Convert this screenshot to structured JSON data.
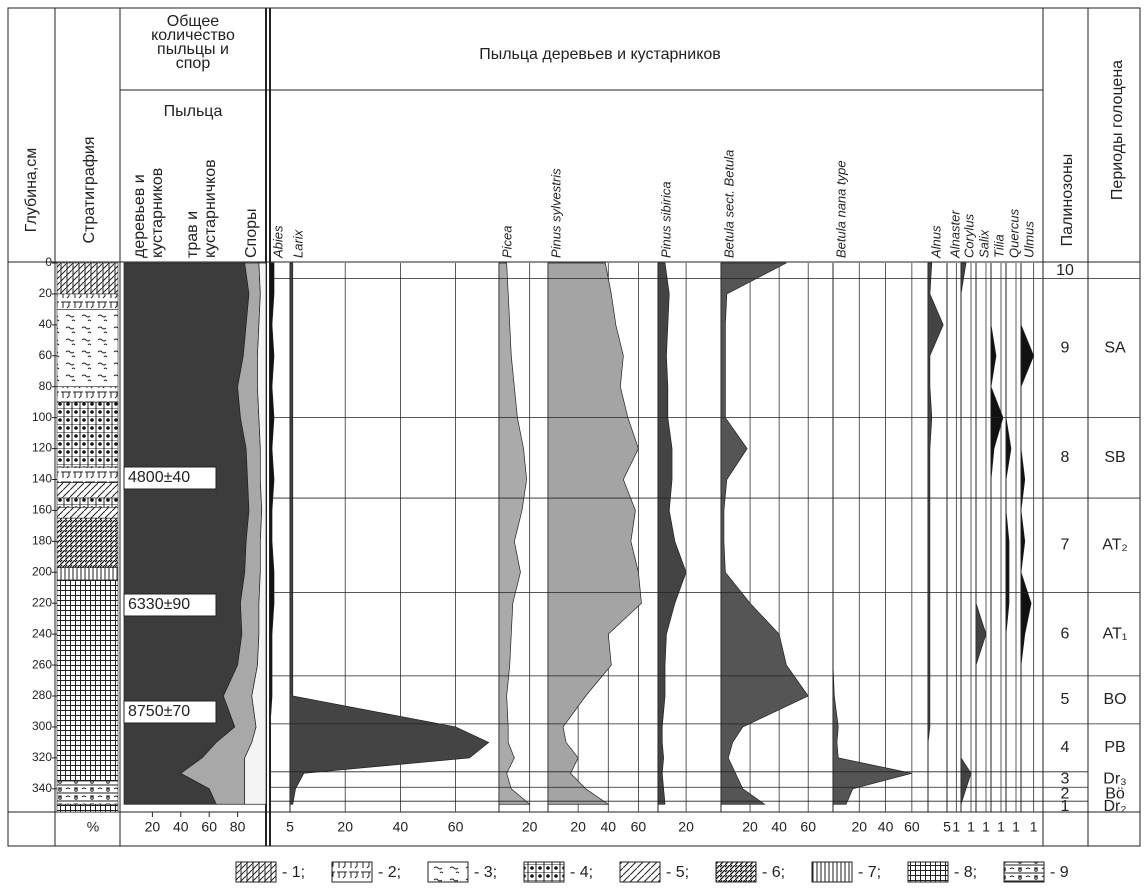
{
  "chart_data": {
    "type": "area",
    "depth_label": "Глубина,см",
    "strat_label": "Стратиграфия",
    "total_title": [
      "Общее",
      "количество",
      "пыльцы и",
      "спор"
    ],
    "pollen_label": "Пыльца",
    "total_groups": [
      {
        "name": [
          "деревьев и",
          "кустарников"
        ],
        "color": "#3c3c3c",
        "values": [
          85,
          88,
          86,
          84,
          80,
          82,
          86,
          87,
          88,
          86,
          85,
          82,
          83,
          80,
          70,
          78,
          65,
          55,
          40,
          60,
          65
        ]
      },
      {
        "name": [
          "трав и",
          "кустарничков"
        ],
        "color": "#a8a8a8",
        "values": [
          10,
          8,
          9,
          10,
          14,
          13,
          10,
          9,
          9,
          10,
          11,
          13,
          12,
          14,
          20,
          15,
          25,
          30,
          45,
          25,
          20
        ]
      },
      {
        "name": [
          "Споры"
        ],
        "color": "#f4f4f4",
        "values": [
          5,
          4,
          5,
          6,
          6,
          5,
          4,
          4,
          3,
          4,
          4,
          5,
          5,
          6,
          10,
          7,
          10,
          15,
          15,
          15,
          15
        ]
      }
    ],
    "total_xlim": [
      0,
      100
    ],
    "total_xticks": [
      20,
      40,
      60,
      80
    ],
    "percent_label": "%",
    "trees_title": "Пыльца деревьев и кустарников",
    "depths": [
      0,
      20,
      40,
      60,
      80,
      100,
      120,
      140,
      160,
      180,
      200,
      220,
      240,
      260,
      280,
      300,
      310,
      320,
      330,
      340,
      350
    ],
    "ylim": [
      0,
      355
    ],
    "yticks": [
      0,
      20,
      40,
      60,
      80,
      100,
      120,
      140,
      160,
      180,
      200,
      220,
      240,
      260,
      280,
      300,
      320,
      340
    ],
    "taxa": [
      {
        "name": "Abies",
        "color": "#111",
        "xlim": [
          0,
          5
        ],
        "xticks": [
          5
        ],
        "values": [
          1,
          1,
          0.5,
          1,
          0.5,
          1,
          0.5,
          1,
          0.5,
          0.5,
          1,
          1,
          0.5,
          0.5,
          0.5,
          0,
          0,
          0,
          0,
          0,
          0
        ]
      },
      {
        "name": "Larix",
        "color": "#444",
        "xlim": [
          0,
          75
        ],
        "xticks": [
          20,
          40,
          60
        ],
        "values": [
          1,
          1,
          1,
          1,
          1,
          1,
          1,
          1,
          1,
          1,
          1,
          1,
          1,
          1,
          1,
          60,
          72,
          65,
          5,
          2,
          1
        ]
      },
      {
        "name": "Picea",
        "color": "#aaa",
        "xlim": [
          0,
          30
        ],
        "xticks": [
          20
        ],
        "values": [
          5,
          6,
          7,
          8,
          10,
          12,
          16,
          18,
          15,
          10,
          14,
          9,
          8,
          7,
          5,
          6,
          6,
          10,
          5,
          8,
          20
        ]
      },
      {
        "name": "Pinus sylvestris",
        "color": "#a4a4a4",
        "xlim": [
          0,
          71
        ],
        "xticks": [
          20,
          40,
          60
        ],
        "values": [
          38,
          42,
          45,
          50,
          48,
          53,
          60,
          50,
          58,
          55,
          60,
          62,
          40,
          42,
          25,
          10,
          12,
          20,
          15,
          25,
          40
        ]
      },
      {
        "name": "Pinus sibirica",
        "color": "#444",
        "xlim": [
          0,
          42
        ],
        "xticks": [
          20
        ],
        "values": [
          5,
          8,
          7,
          6,
          7,
          7,
          10,
          10,
          8,
          12,
          20,
          12,
          6,
          5,
          5,
          3,
          3,
          4,
          3,
          4,
          5
        ]
      },
      {
        "name": "Betula sect. Betula",
        "color": "#555",
        "xlim": [
          0,
          75
        ],
        "xticks": [
          20,
          40,
          60
        ],
        "values": [
          45,
          4,
          3,
          3,
          3,
          3,
          18,
          4,
          2,
          2,
          3,
          20,
          40,
          45,
          60,
          15,
          8,
          5,
          10,
          15,
          30
        ]
      },
      {
        "name": "Betula nana type",
        "color": "#555",
        "xlim": [
          0,
          70
        ],
        "xticks": [
          20,
          40,
          60
        ],
        "values": [
          0,
          0,
          0,
          0,
          0,
          0,
          0,
          0,
          0,
          0,
          0,
          0,
          0,
          0,
          1,
          4,
          3,
          4,
          60,
          15,
          10
        ]
      },
      {
        "name": "Alnus",
        "color": "#444",
        "xlim": [
          0,
          5
        ],
        "xticks": [
          5
        ],
        "values": [
          1,
          0.5,
          4,
          0.5,
          0.5,
          1,
          0.5,
          0.5,
          0.5,
          0.5,
          0.5,
          0.5,
          0.5,
          0.5,
          0.5,
          0.5,
          0,
          0,
          0,
          0,
          0
        ]
      },
      {
        "name": "Alnaster",
        "color": "#444",
        "xlim": [
          0,
          1.5
        ],
        "xticks": [
          1
        ],
        "values": [
          0,
          0,
          0,
          0,
          0,
          0,
          0,
          0,
          0,
          0,
          0,
          0,
          0,
          0,
          0,
          0,
          0,
          0,
          0,
          0,
          0
        ]
      },
      {
        "name": "Corylus",
        "color": "#444",
        "xlim": [
          0,
          1.5
        ],
        "xticks": [
          1
        ],
        "values": [
          0.5,
          0,
          0,
          0,
          0,
          0,
          0,
          0,
          0,
          0,
          0,
          0,
          0,
          0,
          0,
          0,
          0,
          0,
          1,
          0.5,
          0
        ]
      },
      {
        "name": "Salix",
        "color": "#444",
        "xlim": [
          0,
          1.5
        ],
        "xticks": [
          1
        ],
        "values": [
          0,
          0,
          0,
          0,
          0,
          0,
          0,
          0,
          0,
          0,
          0,
          0,
          1,
          0,
          0,
          0,
          0,
          0,
          0,
          0,
          0
        ]
      },
      {
        "name": "Tilia",
        "color": "#111",
        "xlim": [
          0,
          1.5
        ],
        "xticks": [
          1
        ],
        "values": [
          0,
          0,
          0,
          0.5,
          0,
          1.2,
          0.3,
          0,
          0,
          0,
          0,
          0,
          0,
          0,
          0,
          0,
          0,
          0,
          0,
          0,
          0
        ]
      },
      {
        "name": "Quercus",
        "color": "#111",
        "xlim": [
          0,
          1.5
        ],
        "xticks": [
          1
        ],
        "values": [
          0,
          0,
          0,
          0,
          0,
          0,
          0.5,
          0,
          0,
          0.3,
          0.3,
          0.3,
          0,
          0,
          0,
          0,
          0,
          0,
          0,
          0,
          0
        ]
      },
      {
        "name": "Ulmus",
        "color": "#111",
        "xlim": [
          0,
          1.5
        ],
        "xticks": [
          1
        ],
        "values": [
          0,
          0,
          0,
          1,
          0,
          0,
          0,
          0.3,
          0,
          0.3,
          0,
          0.8,
          0.3,
          0,
          0,
          0,
          0,
          0,
          0,
          0,
          0
        ]
      }
    ],
    "dates": [
      "4800±40",
      "6330±90",
      "8750±70"
    ],
    "zones_label": "Палинозоны",
    "periods_label": "Периоды голоцена",
    "zones": [
      {
        "zone": "10",
        "top": 0,
        "bottom": 10
      },
      {
        "zone": "9",
        "period": "SA",
        "top": 10,
        "bottom": 100
      },
      {
        "zone": "8",
        "period": "SB",
        "top": 100,
        "bottom": 152
      },
      {
        "zone": "7",
        "period": "AT₂",
        "top": 152,
        "bottom": 213
      },
      {
        "zone": "6",
        "period": "AT₁",
        "top": 213,
        "bottom": 267
      },
      {
        "zone": "5",
        "period": "BO",
        "top": 267,
        "bottom": 298
      },
      {
        "zone": "4",
        "period": "PB",
        "top": 298,
        "bottom": 329
      },
      {
        "zone": "3",
        "period": "Dr₃",
        "top": 329,
        "bottom": 339
      },
      {
        "zone": "2",
        "period": "Bö",
        "top": 339,
        "bottom": 348
      },
      {
        "zone": "1",
        "period": "Dr₂",
        "top": 348,
        "bottom": 355
      }
    ],
    "layers": [
      {
        "top": 0,
        "bottom": 20,
        "type": 1
      },
      {
        "top": 20,
        "bottom": 30,
        "type": 2
      },
      {
        "top": 30,
        "bottom": 80,
        "type": 3
      },
      {
        "top": 80,
        "bottom": 90,
        "type": 2
      },
      {
        "top": 90,
        "bottom": 132,
        "type": 4
      },
      {
        "top": 132,
        "bottom": 142,
        "type": 2
      },
      {
        "top": 142,
        "bottom": 152,
        "type": 5
      },
      {
        "top": 152,
        "bottom": 158,
        "type": 4
      },
      {
        "top": 158,
        "bottom": 165,
        "type": 5
      },
      {
        "top": 165,
        "bottom": 197,
        "type": 6
      },
      {
        "top": 197,
        "bottom": 205,
        "type": 7
      },
      {
        "top": 205,
        "bottom": 335,
        "type": 8
      },
      {
        "top": 335,
        "bottom": 350,
        "type": 9
      },
      {
        "top": 350,
        "bottom": 355,
        "type": 8
      }
    ],
    "legend": [
      "- 1;",
      "- 2;",
      "- 3;",
      "- 4;",
      "- 5;",
      "- 6;",
      "- 7;",
      "- 8;",
      "- 9"
    ]
  }
}
